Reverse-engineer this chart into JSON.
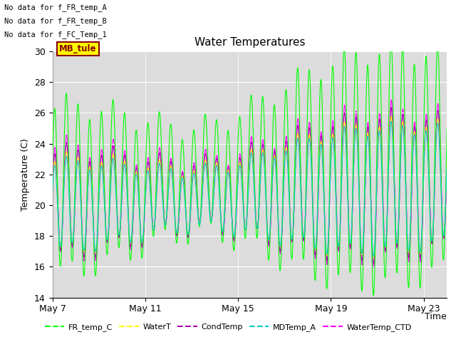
{
  "title": "Water Temperatures",
  "xlabel": "Time",
  "ylabel": "Temperature (C)",
  "ylim": [
    14,
    30
  ],
  "yticks": [
    14,
    16,
    18,
    20,
    22,
    24,
    26,
    28,
    30
  ],
  "xtick_labels": [
    "May 7",
    "May 11",
    "May 15",
    "May 19",
    "May 23"
  ],
  "xtick_positions": [
    0,
    4,
    8,
    12,
    16
  ],
  "annotations": [
    "No data for f_FR_temp_A",
    "No data for f_FR_temp_B",
    "No data for f_FC_Temp_1"
  ],
  "legend": [
    {
      "label": "FR_temp_C",
      "color": "#00ff00"
    },
    {
      "label": "WaterT",
      "color": "#ffff00"
    },
    {
      "label": "CondTemp",
      "color": "#aa00aa"
    },
    {
      "label": "MDTemp_A",
      "color": "#00cccc"
    },
    {
      "label": "WaterTemp_CTD",
      "color": "#ff00ff"
    }
  ],
  "background_color": "#dcdcdc",
  "n_days": 17,
  "samples_per_day": 144,
  "start_day": 7
}
